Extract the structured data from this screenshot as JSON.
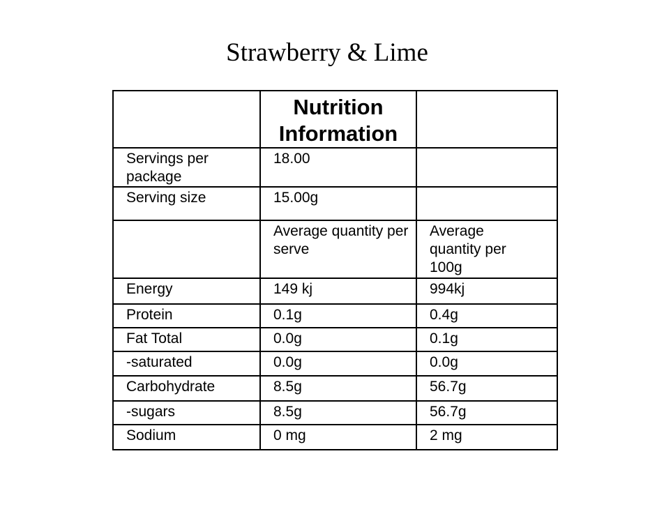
{
  "title": "Strawberry & Lime",
  "header": "Nutrition Information",
  "servings_label": "Servings per package",
  "servings_value": "18.00",
  "size_label": "Serving size",
  "size_value": "15.00g",
  "col_serve": "Average quantity per serve",
  "col_100g": "Average quantity per 100g",
  "rows": [
    {
      "name": "Energy",
      "serve": "149 kj",
      "per100": "994kj"
    },
    {
      "name": "Protein",
      "serve": "0.1g",
      "per100": "0.4g"
    },
    {
      "name": "Fat Total",
      "serve": "0.0g",
      "per100": "0.1g"
    },
    {
      "name": "-saturated",
      "serve": "0.0g",
      "per100": "0.0g"
    },
    {
      "name": "Carbohydrate",
      "serve": "8.5g",
      "per100": "56.7g"
    },
    {
      "name": "-sugars",
      "serve": "8.5g",
      "per100": "56.7g"
    },
    {
      "name": "Sodium",
      "serve": "0 mg",
      "per100": "2 mg"
    }
  ]
}
